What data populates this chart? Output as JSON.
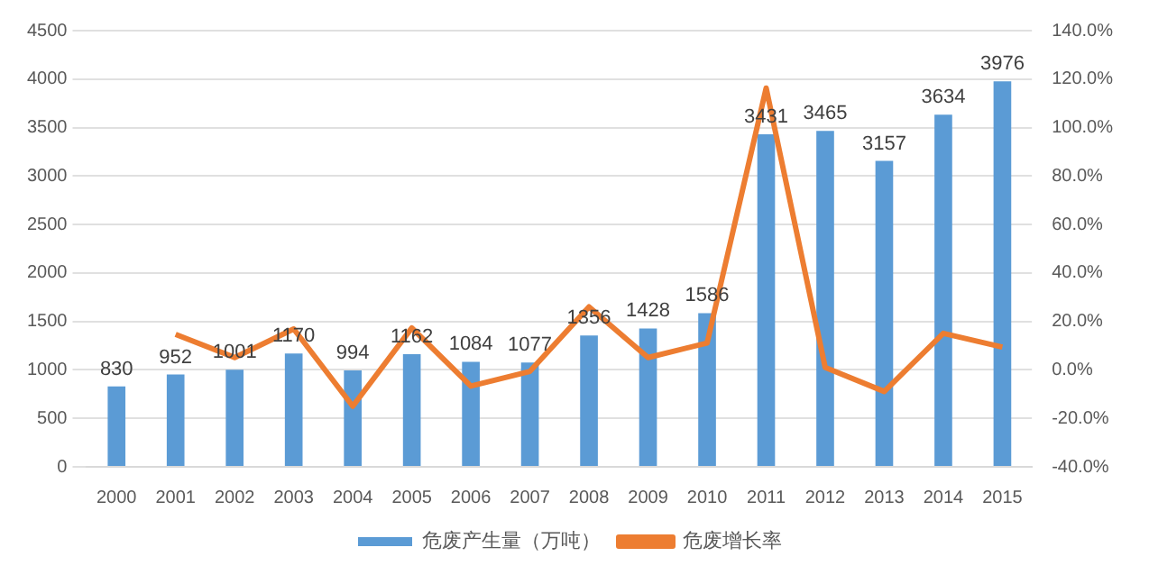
{
  "chart_data": {
    "type": "bar",
    "categories": [
      "2000",
      "2001",
      "2002",
      "2003",
      "2004",
      "2005",
      "2006",
      "2007",
      "2008",
      "2009",
      "2010",
      "2011",
      "2012",
      "2013",
      "2014",
      "2015"
    ],
    "series": [
      {
        "name": "危废产生量（万吨）",
        "color": "#5b9bd5",
        "values": [
          830,
          952,
          1001,
          1170,
          994,
          1162,
          1084,
          1077,
          1356,
          1428,
          1586,
          3431,
          3465,
          3157,
          3634,
          3976
        ],
        "value_labels": [
          "830",
          "952",
          "1001",
          "1170",
          "994",
          "1162",
          "1084",
          "1077",
          "1356",
          "1428",
          "1586",
          "3431",
          "3465",
          "3157",
          "3634",
          "3976"
        ]
      },
      {
        "name": "危废增长率",
        "type": "line",
        "axis": "y2",
        "color": "#ed7d31",
        "values": [
          null,
          14.7,
          5.1,
          16.9,
          -15.0,
          17.3,
          -6.7,
          -0.6,
          26.0,
          5.1,
          11.1,
          116.3,
          1.0,
          -8.9,
          15.1,
          9.4
        ]
      }
    ],
    "ylim": [
      0,
      4500
    ],
    "yticks": [
      0,
      500,
      1000,
      1500,
      2000,
      2500,
      3000,
      3500,
      4000,
      4500
    ],
    "y2lim": [
      -40,
      140
    ],
    "y2ticks": [
      {
        "value": -40,
        "label": "-40.0%"
      },
      {
        "value": -20,
        "label": "-20.0%"
      },
      {
        "value": 0,
        "label": "0.0%"
      },
      {
        "value": 20,
        "label": "20.0%"
      },
      {
        "value": 40,
        "label": "40.0%"
      },
      {
        "value": 60,
        "label": "60.0%"
      },
      {
        "value": 80,
        "label": "80.0%"
      },
      {
        "value": 100,
        "label": "100.0%"
      },
      {
        "value": 120,
        "label": "120.0%"
      },
      {
        "value": 140,
        "label": "140.0%"
      }
    ],
    "grid": "y",
    "legend": "bottom",
    "marker": "none",
    "line_style": "solid"
  }
}
